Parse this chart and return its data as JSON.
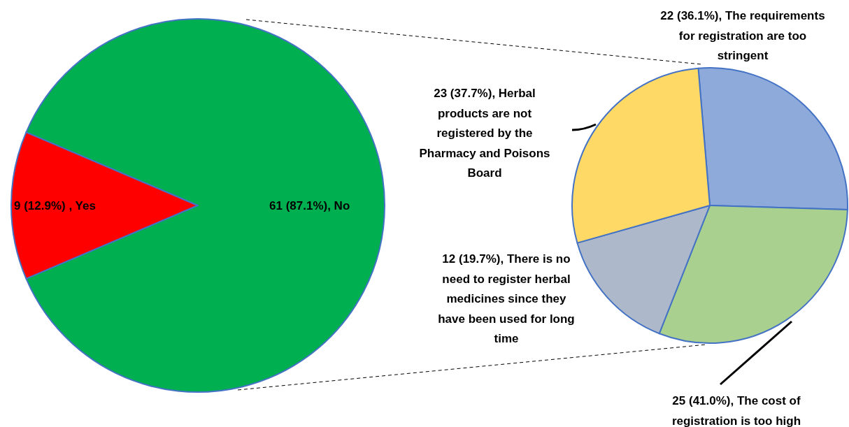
{
  "chart_data": [
    {
      "type": "pie",
      "categories": [
        "9 (12.9%) , Yes",
        "61 (87.1%), No"
      ],
      "values": [
        9,
        61
      ],
      "colors": [
        "#ff0000",
        "#00b050"
      ]
    },
    {
      "type": "pie",
      "categories": [
        "22 (36.1%), The requirements for registration are too stringent",
        "25 (41.0%), The cost of registration is too high",
        "12 (19.7%), There is no need to register herbal medicines since they have been used for long time",
        "23 (37.7%), Herbal products are not registered by the Pharmacy and Poisons Board"
      ],
      "values": [
        22,
        25,
        12,
        23
      ],
      "colors": [
        "#8eaadb",
        "#a9d08e",
        "#adb9ca",
        "#ffd966"
      ]
    }
  ]
}
